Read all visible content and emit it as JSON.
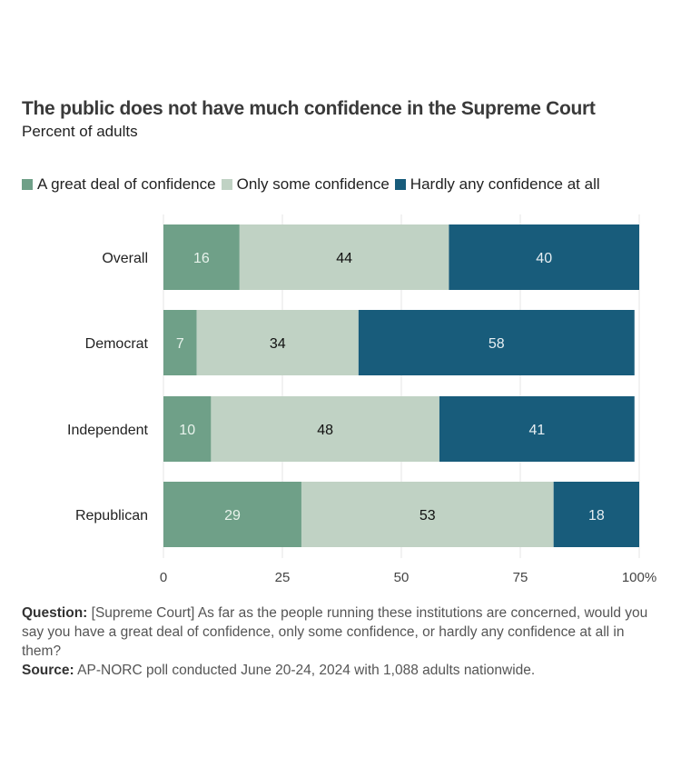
{
  "chart_data": {
    "type": "bar",
    "orientation": "horizontal",
    "stacked": true,
    "title": "The public does not have much confidence in the Supreme Court",
    "subtitle": "Percent of adults",
    "categories": [
      "Overall",
      "Democrat",
      "Independent",
      "Republican"
    ],
    "series": [
      {
        "name": "A great deal of confidence",
        "color": "#6fa088",
        "label_color": "#e8f3ec",
        "values": [
          16,
          7,
          10,
          29
        ]
      },
      {
        "name": "Only some confidence",
        "color": "#c0d2c4",
        "label_color": "#111111",
        "values": [
          44,
          34,
          48,
          53
        ]
      },
      {
        "name": "Hardly any confidence at all",
        "color": "#185c7b",
        "label_color": "#e6eef2",
        "values": [
          40,
          58,
          41,
          18
        ]
      }
    ],
    "xlim": [
      0,
      100
    ],
    "xticks": [
      0,
      25,
      50,
      75,
      100
    ],
    "xtick_labels": [
      "0",
      "25",
      "50",
      "75",
      "100%"
    ],
    "xlabel": "",
    "ylabel": "",
    "grid": true,
    "legend_position": "top"
  },
  "footer": {
    "question_label": "Question:",
    "question_text": " [Supreme Court] As far as the people running these institutions are concerned, would you say you have a great deal of confidence, only some confidence, or hardly any confidence at all in them?",
    "source_label": "Source:",
    "source_text": " AP-NORC poll conducted June 20-24, 2024 with 1,088 adults nationwide."
  }
}
